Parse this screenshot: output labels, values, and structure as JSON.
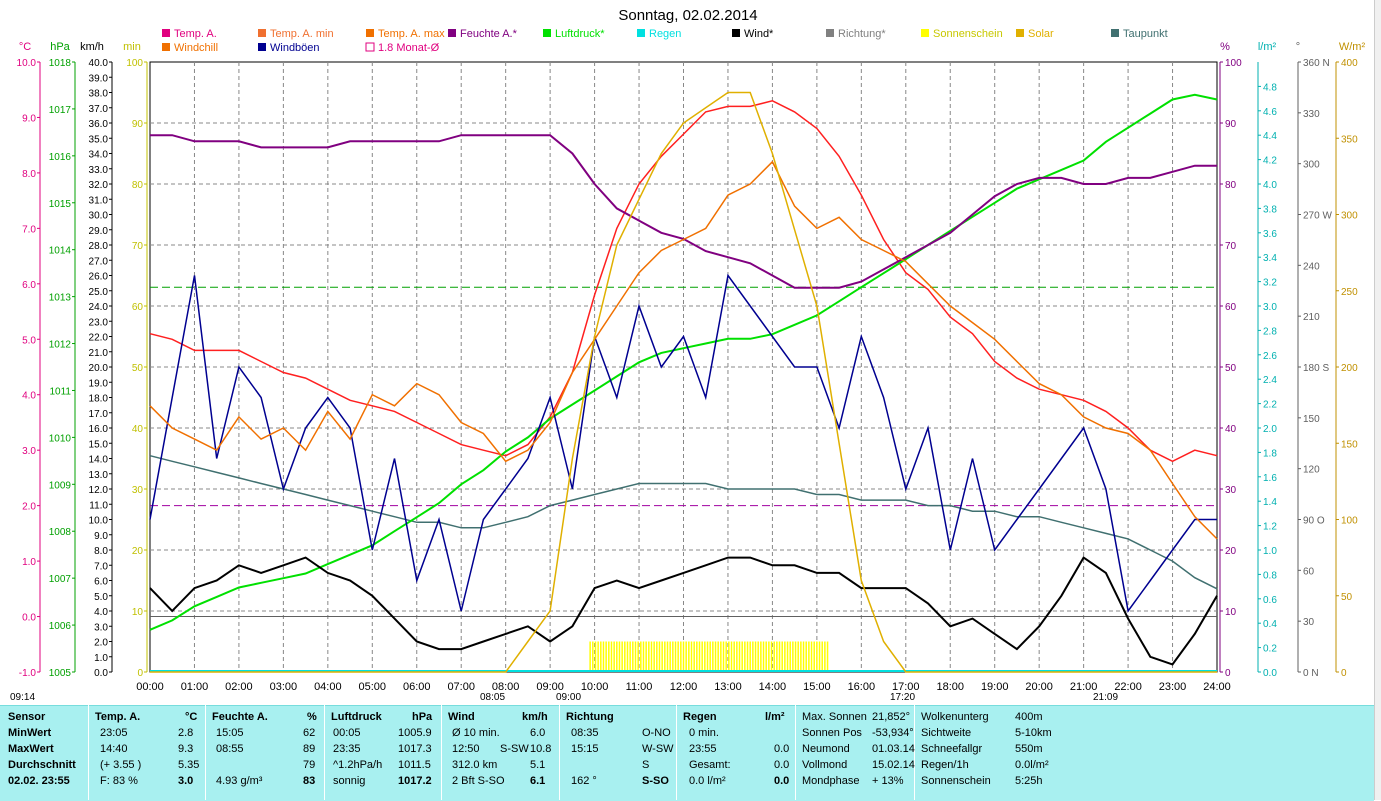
{
  "title": "Sonntag, 02.02.2014",
  "legend": [
    {
      "label": "Temp. A.",
      "color": "#e0007f",
      "marker": "box"
    },
    {
      "label": "Temp. A. min",
      "color": "#f07030",
      "marker": "box"
    },
    {
      "label": "Temp. A. max",
      "color": "#f07000",
      "marker": "box"
    },
    {
      "label": "Feuchte A.*",
      "color": "#800080",
      "marker": "box"
    },
    {
      "label": "Luftdruck*",
      "color": "#00e000",
      "marker": "box"
    },
    {
      "label": "Regen",
      "color": "#00e0e0",
      "marker": "box"
    },
    {
      "label": "Wind*",
      "color": "#000000",
      "marker": "box"
    },
    {
      "label": "Richtung*",
      "color": "#808080",
      "marker": "box"
    },
    {
      "label": "Sonnenschein",
      "color": "#ffff00",
      "marker": "box"
    },
    {
      "label": "Solar",
      "color": "#e0b000",
      "marker": "box"
    },
    {
      "label": "Taupunkt",
      "color": "#407070",
      "marker": "box"
    },
    {
      "label": "Windchill",
      "color": "#f07000",
      "marker": "box"
    },
    {
      "label": "Windböen",
      "color": "#000090",
      "marker": "box"
    },
    {
      "label": "1.8 Monat-Ø",
      "color": "#e0007f",
      "marker": "outline"
    }
  ],
  "axes": {
    "temp": {
      "unit": "°C",
      "color": "#e0007f",
      "ticks": [
        "10.0",
        "9.0",
        "8.0",
        "7.0",
        "6.0",
        "5.0",
        "4.0",
        "3.0",
        "2.0",
        "1.0",
        "0.0",
        "-1.0"
      ]
    },
    "pressure": {
      "unit": "hPa",
      "color": "#00a000",
      "ticks": [
        "1018",
        "1017",
        "1016",
        "1015",
        "1014",
        "1013",
        "1012",
        "1011",
        "1010",
        "1009",
        "1008",
        "1007",
        "1006",
        "1005"
      ]
    },
    "wind": {
      "unit": "km/h",
      "color": "#000000",
      "ticks": [
        "40.0",
        "39.0",
        "38.0",
        "37.0",
        "36.0",
        "35.0",
        "34.0",
        "33.0",
        "32.0",
        "31.0",
        "30.0",
        "29.0",
        "28.0",
        "27.0",
        "26.0",
        "25.0",
        "24.0",
        "23.0",
        "22.0",
        "21.0",
        "20.0",
        "19.0",
        "18.0",
        "17.0",
        "16.0",
        "15.0",
        "14.0",
        "13.0",
        "12.0",
        "11.0",
        "10.0",
        "9.0",
        "8.0",
        "7.0",
        "6.0",
        "5.0",
        "4.0",
        "3.0",
        "2.0",
        "1.0",
        "0.0"
      ]
    },
    "sun": {
      "unit": "min",
      "color": "#c0c000",
      "ticks": [
        "100",
        "90",
        "80",
        "70",
        "60",
        "50",
        "40",
        "30",
        "20",
        "10",
        "0"
      ]
    },
    "humidity": {
      "unit": "%",
      "color": "#800080",
      "ticks": [
        "100",
        "90",
        "80",
        "70",
        "60",
        "50",
        "40",
        "30",
        "20",
        "10",
        "0"
      ]
    },
    "rain": {
      "unit": "l/m²",
      "color": "#00b0b0",
      "ticks": [
        "4.8",
        "4.6",
        "4.4",
        "4.2",
        "4.0",
        "3.8",
        "3.6",
        "3.4",
        "3.2",
        "3.0",
        "2.8",
        "2.6",
        "2.4",
        "2.2",
        "2.0",
        "1.8",
        "1.6",
        "1.4",
        "1.2",
        "1.0",
        "0.8",
        "0.6",
        "0.4",
        "0.2",
        "0.0"
      ]
    },
    "direction": {
      "unit": "°",
      "color": "#606060",
      "ticks": [
        "360 N",
        "330",
        "300",
        "270 W",
        "240",
        "210",
        "180 S",
        "150",
        "120",
        "90 O",
        "60",
        "30",
        "0 N"
      ]
    },
    "solar": {
      "unit": "W/m²",
      "color": "#c09000",
      "ticks": [
        "400",
        "350",
        "300",
        "250",
        "200",
        "150",
        "100",
        "50",
        "0"
      ]
    },
    "time_ticks": [
      "00:00",
      "01:00",
      "02:00",
      "03:00",
      "04:00",
      "05:00",
      "06:00",
      "07:00",
      "08:00",
      "09:00",
      "10:00",
      "11:00",
      "12:00",
      "13:00",
      "14:00",
      "15:00",
      "16:00",
      "17:00",
      "18:00",
      "19:00",
      "20:00",
      "21:00",
      "22:00",
      "23:00",
      "24:00"
    ]
  },
  "markers": {
    "sunrise_left": "09:14",
    "rise": "08:05",
    "set1": "09:00",
    "set2": "17:20",
    "moon": "21:09"
  },
  "chart_data": {
    "type": "line",
    "x_unit": "hours",
    "x": [
      0,
      0.5,
      1,
      1.5,
      2,
      2.5,
      3,
      3.5,
      4,
      4.5,
      5,
      5.5,
      6,
      6.5,
      7,
      7.5,
      8,
      8.5,
      9,
      9.5,
      10,
      10.5,
      11,
      11.5,
      12,
      12.5,
      13,
      13.5,
      14,
      14.5,
      15,
      15.5,
      16,
      16.5,
      17,
      17.5,
      18,
      18.5,
      19,
      19.5,
      20,
      20.5,
      21,
      21.5,
      22,
      22.5,
      23,
      23.5,
      24
    ],
    "series": [
      {
        "name": "Temp. A.",
        "axis": "temp",
        "color": "#ff2020",
        "values": [
          5.1,
          5.0,
          4.8,
          4.8,
          4.8,
          4.6,
          4.4,
          4.3,
          4.1,
          3.9,
          3.8,
          3.7,
          3.5,
          3.3,
          3.1,
          3.0,
          2.9,
          3.1,
          3.6,
          4.4,
          5.8,
          7.0,
          7.8,
          8.3,
          8.7,
          9.1,
          9.2,
          9.2,
          9.3,
          9.1,
          8.8,
          8.3,
          7.6,
          6.8,
          6.2,
          5.9,
          5.4,
          5.1,
          4.6,
          4.3,
          4.1,
          4.0,
          3.9,
          3.7,
          3.4,
          3.0,
          2.8,
          3.0,
          2.9
        ]
      },
      {
        "name": "Taupunkt",
        "axis": "temp",
        "color": "#407070",
        "values": [
          2.9,
          2.8,
          2.7,
          2.6,
          2.5,
          2.4,
          2.3,
          2.2,
          2.1,
          2.0,
          1.9,
          1.8,
          1.7,
          1.7,
          1.6,
          1.6,
          1.7,
          1.8,
          2.0,
          2.1,
          2.2,
          2.3,
          2.4,
          2.4,
          2.4,
          2.4,
          2.3,
          2.3,
          2.3,
          2.3,
          2.2,
          2.2,
          2.1,
          2.1,
          2.1,
          2.0,
          2.0,
          1.9,
          1.9,
          1.8,
          1.8,
          1.7,
          1.6,
          1.5,
          1.4,
          1.2,
          1.0,
          0.7,
          0.5
        ]
      },
      {
        "name": "Luftdruck*",
        "axis": "pressure",
        "color": "#00e000",
        "values": [
          1005.9,
          1006.1,
          1006.4,
          1006.6,
          1006.8,
          1006.9,
          1007.0,
          1007.1,
          1007.3,
          1007.5,
          1007.7,
          1008.0,
          1008.3,
          1008.6,
          1009.0,
          1009.3,
          1009.7,
          1010.0,
          1010.4,
          1010.7,
          1011.0,
          1011.3,
          1011.6,
          1011.8,
          1011.9,
          1012.0,
          1012.1,
          1012.1,
          1012.2,
          1012.4,
          1012.6,
          1012.9,
          1013.2,
          1013.5,
          1013.8,
          1014.1,
          1014.4,
          1014.7,
          1015.0,
          1015.3,
          1015.5,
          1015.7,
          1015.9,
          1016.3,
          1016.6,
          1016.9,
          1017.2,
          1017.3,
          1017.2
        ]
      },
      {
        "name": "Feuchte A.*",
        "axis": "humidity",
        "color": "#800080",
        "values": [
          88,
          88,
          87,
          87,
          87,
          86,
          86,
          86,
          86,
          87,
          87,
          87,
          87,
          87,
          88,
          88,
          88,
          88,
          88,
          85,
          80,
          76,
          74,
          72,
          71,
          69,
          68,
          67,
          65,
          63,
          63,
          63,
          64,
          66,
          68,
          70,
          72,
          75,
          78,
          80,
          81,
          81,
          80,
          80,
          81,
          81,
          82,
          83,
          83
        ]
      },
      {
        "name": "Wind*",
        "axis": "wind",
        "color": "#000000",
        "values": [
          5.5,
          4.0,
          5.5,
          6.0,
          7.0,
          6.5,
          7.0,
          7.5,
          6.5,
          6.0,
          5.0,
          3.5,
          2.0,
          1.5,
          1.5,
          2.0,
          2.5,
          3.0,
          2.0,
          3.0,
          5.5,
          6.0,
          5.5,
          6.0,
          6.5,
          7.0,
          7.5,
          7.5,
          7.0,
          7.0,
          6.5,
          6.5,
          5.5,
          5.5,
          5.5,
          4.5,
          3.0,
          3.5,
          2.5,
          1.5,
          3.0,
          5.0,
          7.5,
          6.5,
          3.5,
          1.0,
          0.5,
          2.5,
          5.0
        ]
      },
      {
        "name": "Windböen",
        "axis": "wind",
        "color": "#000090",
        "values": [
          10,
          18,
          26,
          14,
          20,
          18,
          12,
          16,
          18,
          16,
          8,
          14,
          6,
          10,
          4,
          10,
          12,
          14,
          18,
          12,
          22,
          18,
          24,
          20,
          22,
          18,
          26,
          24,
          22,
          20,
          20,
          16,
          22,
          18,
          12,
          16,
          8,
          14,
          8,
          10,
          12,
          14,
          16,
          12,
          4,
          6,
          8,
          10,
          10
        ]
      },
      {
        "name": "Temp. A. min",
        "axis": "temp",
        "color": "#f07000",
        "values": [
          3.8,
          3.4,
          3.2,
          3.0,
          3.6,
          3.2,
          3.4,
          3.0,
          3.7,
          3.2,
          4.0,
          3.8,
          4.2,
          4.0,
          3.5,
          3.3,
          2.8,
          3.0,
          3.5,
          4.4,
          5.0,
          5.6,
          6.2,
          6.6,
          6.8,
          7.0,
          7.6,
          7.8,
          8.2,
          7.4,
          7.0,
          7.2,
          6.8,
          6.6,
          6.4,
          6.0,
          5.6,
          5.3,
          5.0,
          4.6,
          4.2,
          4.0,
          3.6,
          3.4,
          3.3,
          3.0,
          2.4,
          1.8,
          1.4
        ]
      },
      {
        "name": "Solar",
        "axis": "solar",
        "color": "#e0b000",
        "values": [
          0,
          0,
          0,
          0,
          0,
          0,
          0,
          0,
          0,
          0,
          0,
          0,
          0,
          0,
          0,
          0,
          0,
          20,
          40,
          140,
          220,
          280,
          310,
          340,
          360,
          370,
          380,
          380,
          340,
          290,
          240,
          150,
          60,
          20,
          0,
          0,
          0,
          0,
          0,
          0,
          0,
          0,
          0,
          0,
          0,
          0,
          0,
          0,
          0
        ]
      }
    ],
    "sunshine_bars": {
      "from": 9.9,
      "to": 15.3,
      "value_min": 5
    },
    "reference_lines": [
      {
        "axis": "temp",
        "value": 0.0,
        "color": "#606060",
        "style": "solid"
      },
      {
        "axis": "pressure",
        "value": 1013.2,
        "color": "#00a000",
        "style": "dash"
      },
      {
        "axis": "temp",
        "value": 2.0,
        "color": "#a000a0",
        "style": "dash"
      }
    ]
  },
  "table": {
    "headers": {
      "sensor": "Sensor",
      "temp": "Temp. A.",
      "temp_u": "°C",
      "hum": "Feuchte A.",
      "hum_u": "%",
      "press": "Luftdruck",
      "press_u": "hPa",
      "wind": "Wind",
      "wind_u": "km/h",
      "dir": "Richtung",
      "rain": "Regen",
      "rain_u": "l/m²"
    },
    "rows": [
      {
        "label": "MinWert",
        "t_time": "23:05",
        "t_val": "2.8",
        "h_time": "15:05",
        "h_val": "62",
        "p_time": "00:05",
        "p_val": "1005.9",
        "w_label": "Ø 10 min.",
        "w_val": "6.0",
        "d_time": "08:35",
        "d_val": "O-NO",
        "r_label": "0 min.",
        "r_val": ""
      },
      {
        "label": "MaxWert",
        "t_time": "14:40",
        "t_val": "9.3",
        "h_time": "08:55",
        "h_val": "89",
        "p_time": "23:35",
        "p_val": "1017.3",
        "w_label": "12:50",
        "w_dir": "S-SW",
        "w_val": "10.8",
        "d_time": "15:15",
        "d_val": "W-SW",
        "r_label": "23:55",
        "r_val": "0.0"
      },
      {
        "label": "Durchschnitt",
        "t_time": "(+ 3.55 )",
        "t_val": "5.35",
        "h_time": "",
        "h_val": "79",
        "p_time": "^1.2hPa/h",
        "p_val": "1011.5",
        "w_label": "312.0 km",
        "w_val": "5.1",
        "d_time": "",
        "d_val": "S",
        "r_label": "Gesamt:",
        "r_val": "0.0"
      },
      {
        "label": "02.02. 23:55",
        "t_time": "F: 83 %",
        "t_val": "3.0",
        "h_time": "4.93 g/m³",
        "h_val": "83",
        "p_time": "sonnig",
        "p_val": "1017.2",
        "w_label": "2 Bft S-SO",
        "w_val": "6.1",
        "d_time": "162 °",
        "d_val": "S-SO",
        "r_label": "0.0 l/m²",
        "r_val": "0.0"
      }
    ],
    "astro": [
      {
        "k": "Max. Sonnen",
        "v": "21,852°"
      },
      {
        "k": "Sonnen Pos",
        "v": "-53,934°"
      },
      {
        "k": "Neumond",
        "v": "01.03.14"
      },
      {
        "k": "Vollmond",
        "v": "15.02.14"
      },
      {
        "k": "Mondphase",
        "v": "+ 13%"
      }
    ],
    "weather": [
      {
        "k": "Wolkenunterg",
        "v": "400m"
      },
      {
        "k": "Sichtweite",
        "v": "5-10km"
      },
      {
        "k": "Schneefallgr",
        "v": "550m"
      },
      {
        "k": "Regen/1h",
        "v": "0.0l/m²"
      },
      {
        "k": "Sonnenschein",
        "v": "5:25h"
      }
    ]
  }
}
